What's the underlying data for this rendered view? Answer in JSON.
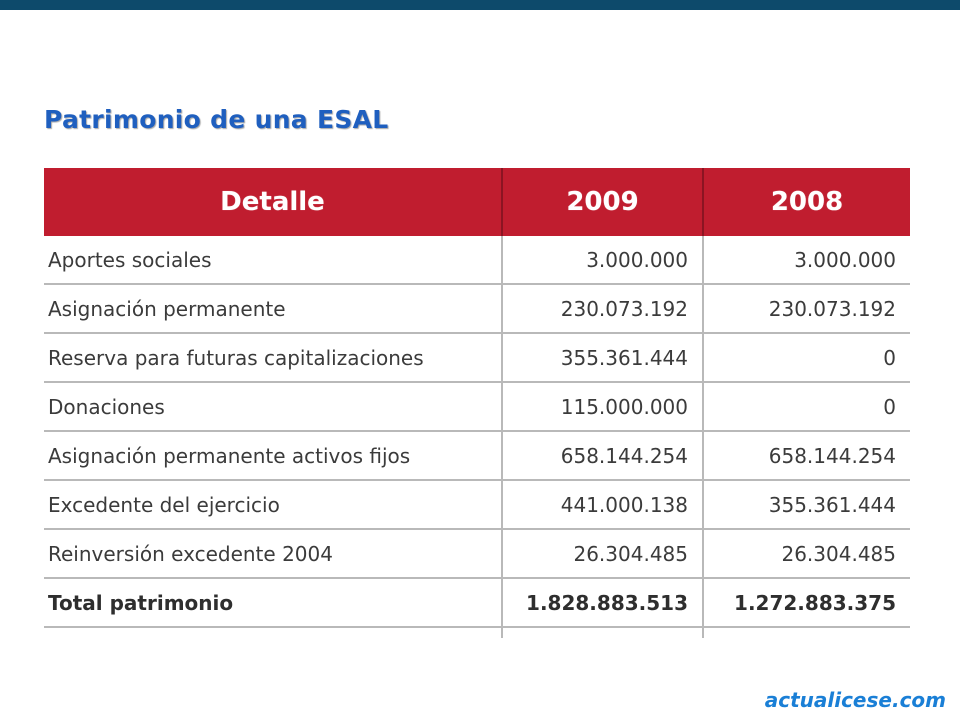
{
  "title": "Patrimonio de una ESAL",
  "table": {
    "headers": [
      "Detalle",
      "2009",
      "2008"
    ],
    "rows": [
      [
        "Aportes sociales",
        "3.000.000",
        "3.000.000"
      ],
      [
        "Asignación permanente",
        "230.073.192",
        "230.073.192"
      ],
      [
        "Reserva para futuras capitalizaciones",
        "355.361.444",
        "0"
      ],
      [
        "Donaciones",
        "115.000.000",
        "0"
      ],
      [
        "Asignación permanente activos fijos",
        "658.144.254",
        "658.144.254"
      ],
      [
        "Excedente del ejercicio",
        "441.000.138",
        "355.361.444"
      ],
      [
        "Reinversión excedente 2004",
        "26.304.485",
        "26.304.485"
      ]
    ],
    "total": [
      "Total patrimonio",
      "1.828.883.513",
      "1.272.883.375"
    ]
  },
  "footer": {
    "brand": "actualicese.com"
  },
  "colors": {
    "top_bar": "#0d4a6b",
    "title": "#1f5fbf",
    "header_bg": "#c01d2f",
    "brand": "#1a7fd6"
  }
}
